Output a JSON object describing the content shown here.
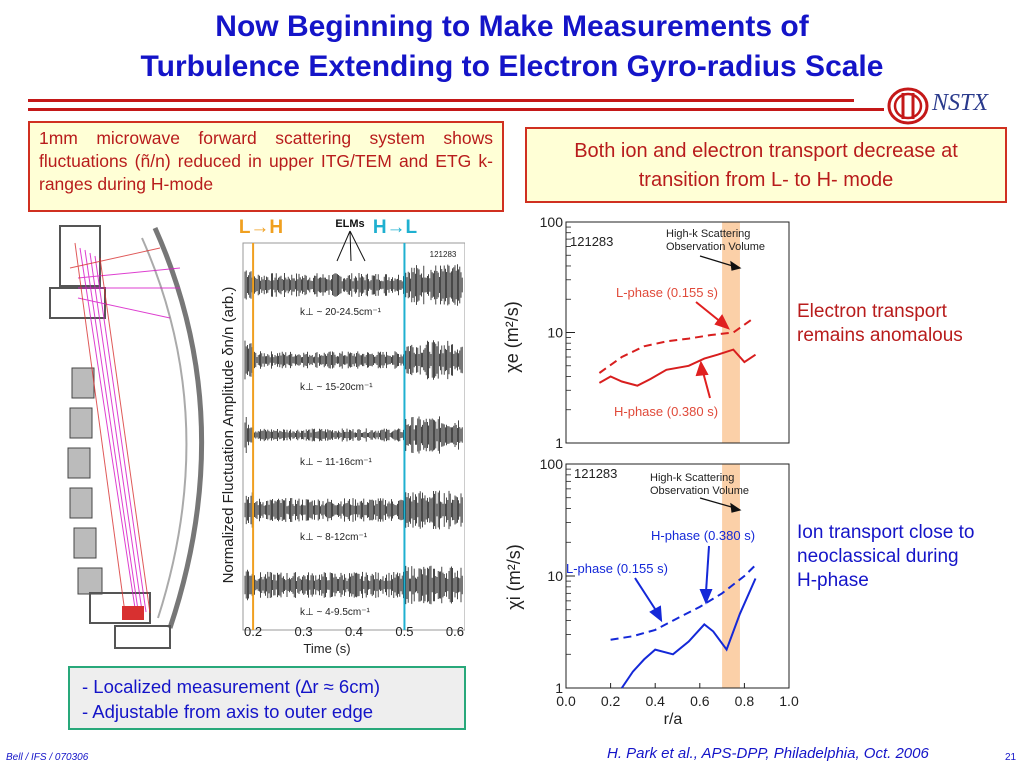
{
  "header": {
    "title_line1": "Now Beginning to Make Measurements of",
    "title_line2": "Turbulence Extending to Electron Gyro-radius Scale",
    "logo_text": "NSTX",
    "colors": {
      "title": "#1414c8",
      "rule": "#c41818",
      "accent": "#b81c1c"
    }
  },
  "left_box": {
    "text": "1mm microwave forward scattering system shows fluctuations (ñ/n) reduced in upper ITG/TEM and ETG k-ranges during H-mode"
  },
  "right_box": {
    "text": "Both ion and electron transport decrease at transition from L- to H- mode"
  },
  "bottom_box": {
    "line1": "- Localized measurement (∆r ≈ 6cm)",
    "line2": "- Adjustable from axis to outer edge"
  },
  "notes": {
    "electron": [
      "Electron transport",
      "remains anomalous"
    ],
    "ion": [
      "Ion transport close to",
      "neoclassical during",
      "H-phase"
    ]
  },
  "footer": {
    "left": "Bell / IFS / 070306",
    "center": "H. Park et al., APS-DPP, Philadelphia, Oct. 2006",
    "page": "21"
  },
  "chart_data": [
    {
      "type": "line",
      "panel": "fluctuation-timeseries",
      "shot": "121283",
      "ylabel": "Normalized Fluctuation Amplitude δn/n (arb.)",
      "xlabel": "Time (s)",
      "x_ticks": [
        "0.2",
        "0.3",
        "0.4",
        "0.5",
        "0.6"
      ],
      "xlim": [
        0.18,
        0.62
      ],
      "markers": [
        {
          "label": "L→H",
          "x": 0.2,
          "color": "#f0a020"
        },
        {
          "label": "H→L",
          "x": 0.5,
          "color": "#1fb0d0"
        }
      ],
      "annotation": "ELMs",
      "series": [
        {
          "name": "k⊥ ~ 20-24.5cm⁻¹",
          "l_amp": 0.95,
          "h_amp": 0.55
        },
        {
          "name": "k⊥ ~ 15-20cm⁻¹",
          "l_amp": 0.9,
          "h_amp": 0.4
        },
        {
          "name": "k⊥ ~ 11-16cm⁻¹",
          "l_amp": 0.85,
          "h_amp": 0.3
        },
        {
          "name": "k⊥ ~ 8-12cm⁻¹",
          "l_amp": 0.9,
          "h_amp": 0.55
        },
        {
          "name": "k⊥ ~ 4-9.5cm⁻¹",
          "l_amp": 0.9,
          "h_amp": 0.6
        }
      ]
    },
    {
      "type": "line",
      "panel": "chi-e",
      "shot": "121283",
      "ylabel": "χe (m²/s)",
      "yscale": "log",
      "ylim": [
        1,
        100
      ],
      "y_ticks": [
        "100",
        "10",
        "1"
      ],
      "xlim": [
        0.0,
        1.0
      ],
      "shaded_region": {
        "x": [
          0.7,
          0.78
        ],
        "label": "High-k Scattering Observation Volume"
      },
      "series": [
        {
          "name": "L-phase (0.155 s)",
          "style": "dashed",
          "color": "#d81e1e",
          "x": [
            0.15,
            0.25,
            0.35,
            0.45,
            0.55,
            0.65,
            0.75,
            0.83
          ],
          "y": [
            4.3,
            6.0,
            7.5,
            8.3,
            8.8,
            9.5,
            10.0,
            13.0
          ]
        },
        {
          "name": "H-phase (0.380 s)",
          "style": "solid",
          "color": "#d81e1e",
          "x": [
            0.15,
            0.2,
            0.25,
            0.32,
            0.38,
            0.45,
            0.55,
            0.62,
            0.68,
            0.75,
            0.8,
            0.85
          ],
          "y": [
            3.5,
            4.0,
            3.6,
            3.3,
            3.8,
            4.6,
            5.0,
            5.8,
            6.3,
            7.0,
            5.4,
            6.3
          ]
        }
      ]
    },
    {
      "type": "line",
      "panel": "chi-i",
      "shot": "121283",
      "ylabel": "χi (m²/s)",
      "xlabel": "r/a",
      "yscale": "log",
      "ylim": [
        1,
        100
      ],
      "y_ticks": [
        "100",
        "10",
        "1"
      ],
      "x_ticks": [
        "0.0",
        "0.2",
        "0.4",
        "0.6",
        "0.8",
        "1.0"
      ],
      "xlim": [
        0.0,
        1.0
      ],
      "shaded_region": {
        "x": [
          0.7,
          0.78
        ],
        "label": "High-k Scattering Observation Volume"
      },
      "series": [
        {
          "name": "L-phase (0.155 s)",
          "style": "dashed",
          "color": "#1428d8",
          "x": [
            0.2,
            0.3,
            0.4,
            0.5,
            0.6,
            0.7,
            0.8,
            0.85
          ],
          "y": [
            2.7,
            2.9,
            3.3,
            4.2,
            5.3,
            7.0,
            10.0,
            12.5
          ]
        },
        {
          "name": "H-phase (0.380 s)",
          "style": "solid",
          "color": "#1428d8",
          "x": [
            0.25,
            0.3,
            0.35,
            0.4,
            0.48,
            0.55,
            0.62,
            0.66,
            0.72,
            0.78,
            0.85
          ],
          "y": [
            1.0,
            1.4,
            1.8,
            2.2,
            2.0,
            2.6,
            3.7,
            3.2,
            2.2,
            4.6,
            9.5
          ]
        }
      ]
    }
  ]
}
